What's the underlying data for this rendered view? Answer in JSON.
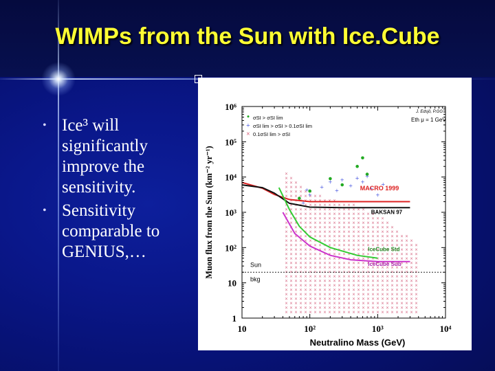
{
  "slide": {
    "title": "WIMPs from the Sun with Ice.Cube",
    "marker_glyph": "",
    "bullets": [
      {
        "lines": [
          "Ice³ will",
          "significantly",
          "improve the",
          "sensitivity."
        ]
      },
      {
        "lines": [
          "Sensitivity",
          "comparable to",
          "GENIUS,…"
        ]
      }
    ]
  },
  "chart_data": {
    "type": "scatter",
    "xlabel": "Neutralino Mass (GeV)",
    "ylabel": "Muon flux from the Sun (km⁻² yr⁻¹)",
    "x_scale": "log",
    "y_scale": "log",
    "xlim": [
      10,
      10000
    ],
    "ylim": [
      1,
      1000000
    ],
    "x_ticks": [
      "10",
      "10²",
      "10³",
      "10⁴"
    ],
    "y_ticks": [
      "1",
      "10",
      "10²",
      "10³",
      "10⁴",
      "10⁵",
      "10⁶"
    ],
    "annotation_author": "J. Edsjö, P.GG",
    "annotation_threshold": "Eth μ = 1 GeV",
    "legend_placement": "top-left",
    "legend": [
      {
        "label": "σSI > σSI lim",
        "marker": "•",
        "color": "#22aa22"
      },
      {
        "label": "σSI lim > σSI > 0.1σSI lim",
        "marker": "+",
        "color": "#3344dd"
      },
      {
        "label": "0.1σSI lim > σSI",
        "marker": "×",
        "color": "#cc3355"
      }
    ],
    "curve_labels": {
      "macro": "MACRO 1999",
      "baksan": "BAKSAN 97",
      "icecube_std": "IceCube Std",
      "icecube_sub": "IceCube Sub",
      "sun_bkg_line1": "Sun",
      "sun_bkg_line2": "bkg"
    },
    "series": [
      {
        "name": "MACRO 1999",
        "color": "#dd2222",
        "x": [
          10,
          20,
          30,
          50,
          100,
          300,
          1000,
          3000
        ],
        "y": [
          7000,
          4800,
          3200,
          2300,
          2000,
          2000,
          2000,
          2000
        ]
      },
      {
        "name": "BAKSAN 97",
        "color": "#111111",
        "x": [
          10,
          20,
          30,
          50,
          100,
          300,
          1000,
          3000
        ],
        "y": [
          6000,
          5000,
          3500,
          1800,
          1400,
          1350,
          1350,
          1350
        ]
      },
      {
        "name": "IceCube Std",
        "color": "#33cc33",
        "x": [
          35,
          50,
          70,
          100,
          200,
          500,
          1000
        ],
        "y": [
          5000,
          1200,
          400,
          200,
          100,
          60,
          50
        ]
      },
      {
        "name": "IceCube Sub",
        "color": "#cc33cc",
        "x": [
          40,
          60,
          100,
          200,
          400,
          1000,
          3000
        ],
        "y": [
          1000,
          250,
          110,
          60,
          45,
          40,
          40
        ]
      },
      {
        "name": "Sun bkg",
        "color": "#222222",
        "dashed": true,
        "x": [
          10,
          10000
        ],
        "y": [
          20,
          20
        ]
      }
    ],
    "points_green": [
      [
        70,
        2500
      ],
      [
        100,
        4000
      ],
      [
        200,
        9000
      ],
      [
        300,
        6000
      ],
      [
        500,
        20000
      ],
      [
        600,
        35000
      ],
      [
        700,
        12000
      ]
    ],
    "points_blue": [
      [
        80,
        1800
      ],
      [
        90,
        4200
      ],
      [
        100,
        3000
      ],
      [
        150,
        5000
      ],
      [
        200,
        7000
      ],
      [
        250,
        4000
      ],
      [
        300,
        8000
      ],
      [
        400,
        5500
      ],
      [
        500,
        9000
      ],
      [
        600,
        7000
      ],
      [
        700,
        10000
      ],
      [
        800,
        4500
      ],
      [
        1000,
        3000
      ],
      [
        1200,
        6000
      ]
    ],
    "crosses_region": {
      "left_boundary": {
        "x": [
          40,
          60,
          100,
          200,
          500,
          1000,
          2000,
          4000
        ],
        "y": [
          15000,
          7000,
          3500,
          2200,
          1400,
          800,
          300,
          100
        ]
      },
      "color": "#cc4466"
    }
  }
}
